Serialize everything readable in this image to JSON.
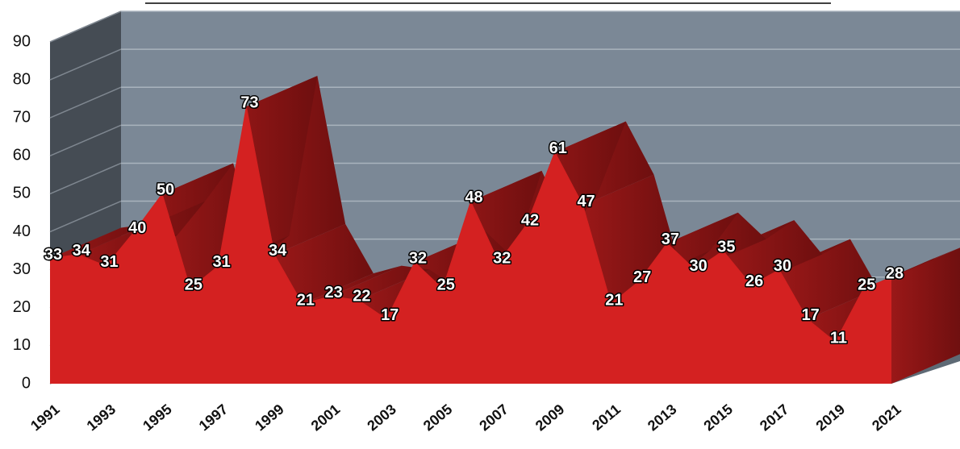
{
  "chart_data": {
    "type": "area3d",
    "categories": [
      "1991",
      null,
      "1993",
      null,
      "1995",
      null,
      "1997",
      null,
      "1999",
      null,
      "2001",
      null,
      "2003",
      null,
      "2005",
      null,
      "2007",
      null,
      "2009",
      null,
      "2011",
      null,
      "2013",
      null,
      "2015",
      null,
      "2017",
      null,
      "2019",
      null,
      "2021"
    ],
    "values": [
      33,
      34,
      31,
      40,
      50,
      25,
      31,
      73,
      34,
      21,
      23,
      22,
      17,
      32,
      25,
      48,
      32,
      42,
      61,
      47,
      21,
      27,
      37,
      30,
      35,
      26,
      30,
      17,
      11,
      25,
      28
    ],
    "color": "#d42121",
    "ylim": [
      0,
      90
    ],
    "yticks": [
      0,
      10,
      20,
      30,
      40,
      50,
      60,
      70,
      80,
      90
    ],
    "grid": true
  }
}
